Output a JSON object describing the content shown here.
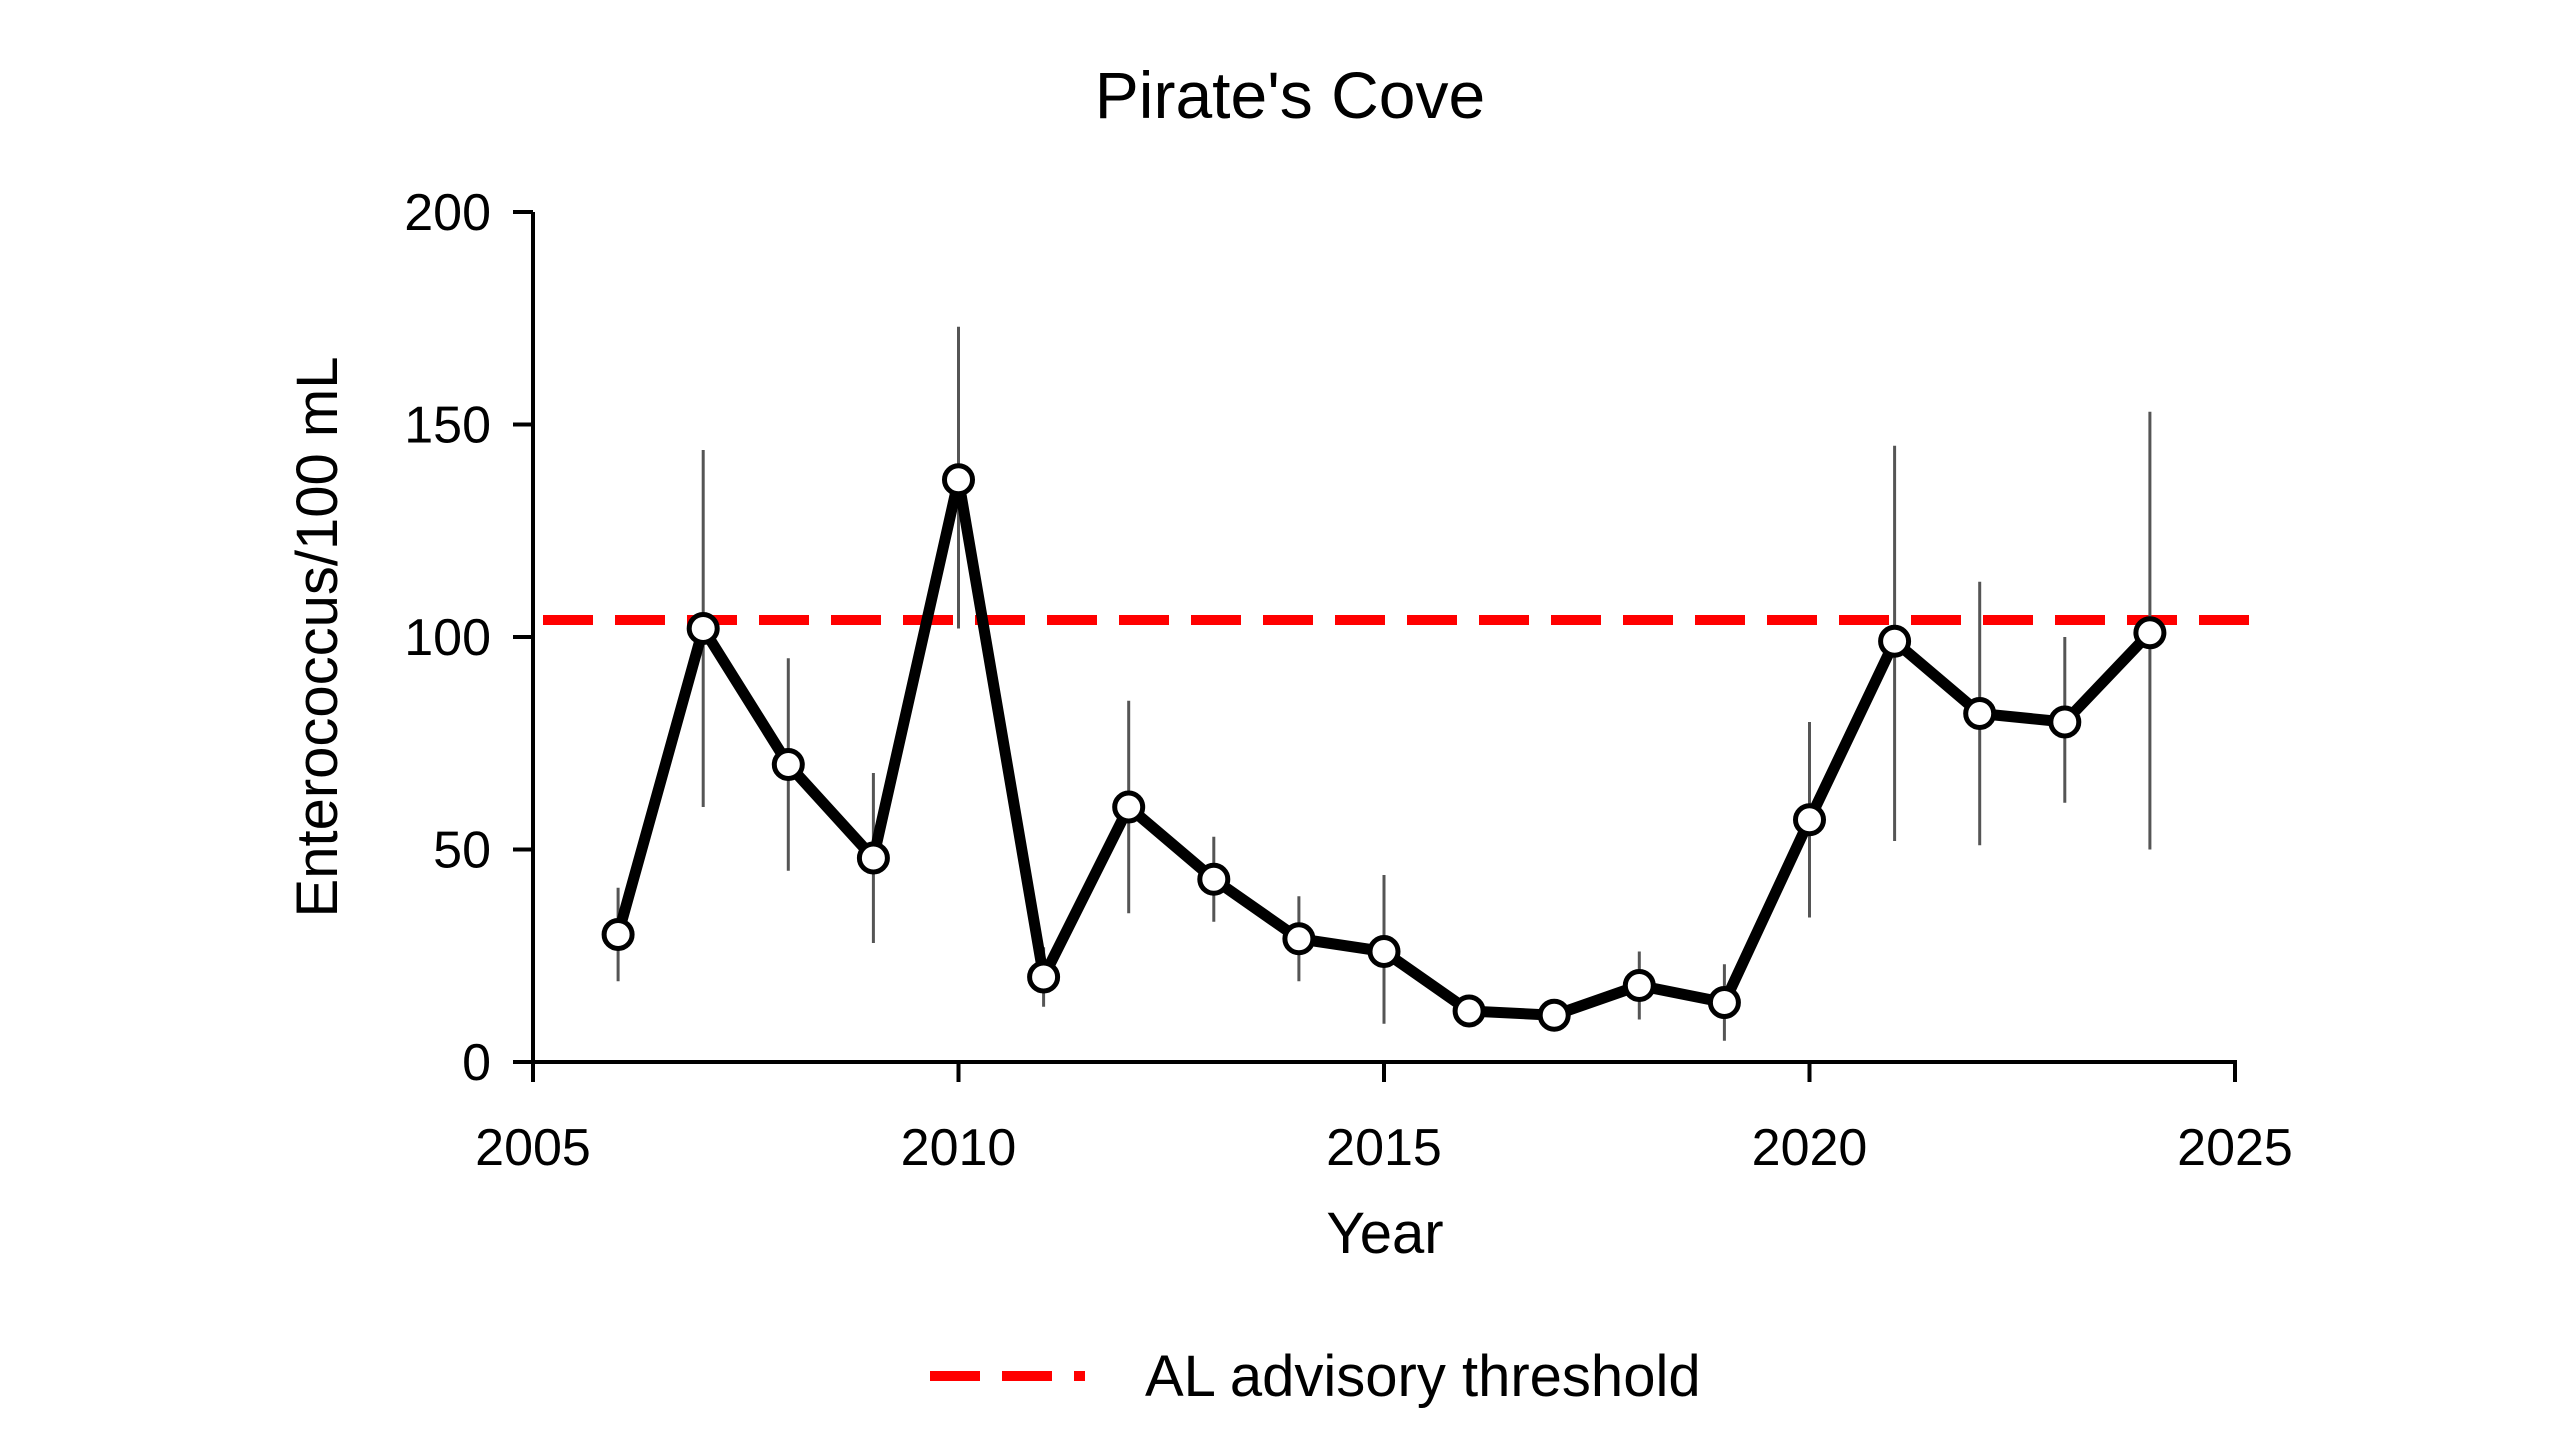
{
  "chart_data": {
    "type": "line",
    "title": "Pirate's Cove",
    "xlabel": "Year",
    "ylabel": "Enterococcus/100 mL",
    "xlim": [
      2005,
      2025
    ],
    "ylim": [
      0,
      200
    ],
    "x_ticks": [
      2005,
      2010,
      2015,
      2020,
      2025
    ],
    "y_ticks": [
      0,
      50,
      100,
      150,
      200
    ],
    "grid": false,
    "legend_position": "bottom-center",
    "series": [
      {
        "color": "#000000",
        "marker": "open-circle",
        "points": [
          {
            "x": 2006,
            "y": 30,
            "lo": 19,
            "hi": 41
          },
          {
            "x": 2007,
            "y": 102,
            "lo": 60,
            "hi": 144
          },
          {
            "x": 2008,
            "y": 70,
            "lo": 45,
            "hi": 95
          },
          {
            "x": 2009,
            "y": 48,
            "lo": 28,
            "hi": 68
          },
          {
            "x": 2010,
            "y": 137,
            "lo": 102,
            "hi": 173
          },
          {
            "x": 2011,
            "y": 20,
            "lo": 13,
            "hi": 27
          },
          {
            "x": 2012,
            "y": 60,
            "lo": 35,
            "hi": 85
          },
          {
            "x": 2013,
            "y": 43,
            "lo": 33,
            "hi": 53
          },
          {
            "x": 2014,
            "y": 29,
            "lo": 19,
            "hi": 39
          },
          {
            "x": 2015,
            "y": 26,
            "lo": 9,
            "hi": 44
          },
          {
            "x": 2016,
            "y": 12,
            "lo": 10,
            "hi": 14
          },
          {
            "x": 2017,
            "y": 11,
            "lo": 9,
            "hi": 13
          },
          {
            "x": 2018,
            "y": 18,
            "lo": 10,
            "hi": 26
          },
          {
            "x": 2019,
            "y": 14,
            "lo": 5,
            "hi": 23
          },
          {
            "x": 2020,
            "y": 57,
            "lo": 34,
            "hi": 80
          },
          {
            "x": 2021,
            "y": 99,
            "lo": 52,
            "hi": 145
          },
          {
            "x": 2022,
            "y": 82,
            "lo": 51,
            "hi": 113
          },
          {
            "x": 2023,
            "y": 80,
            "lo": 61,
            "hi": 100
          },
          {
            "x": 2024,
            "y": 101,
            "lo": 50,
            "hi": 153
          }
        ]
      }
    ],
    "threshold": {
      "name": "AL advisory threshold",
      "y": 104,
      "color": "#ff0000",
      "style": "dashed"
    }
  }
}
